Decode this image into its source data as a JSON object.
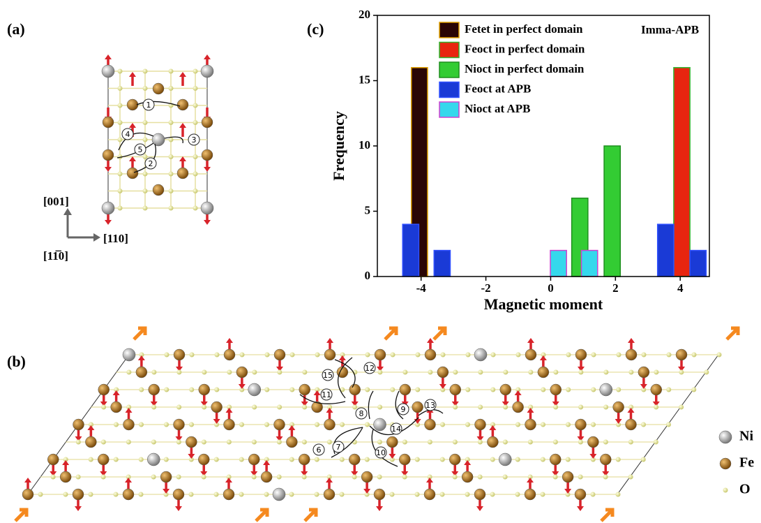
{
  "panel_a": {
    "label": "(a)",
    "paths": [
      "1",
      "2",
      "3",
      "4",
      "5"
    ],
    "axes": [
      "[001]",
      "[110]",
      "[11̅0]"
    ]
  },
  "panel_b": {
    "label": "(b)",
    "paths": [
      "6",
      "7",
      "8",
      "9",
      "10",
      "11",
      "12",
      "13",
      "14",
      "15"
    ],
    "legend": [
      "Ni",
      "Fe",
      "O"
    ]
  },
  "chart_data": {
    "type": "bar",
    "panel_label": "(c)",
    "annotation": "Imma-APB",
    "xlabel": "Magnetic moment",
    "ylabel": "Frequency",
    "xlim": [
      -5.35,
      4.9
    ],
    "xticks": [
      -4,
      -2,
      0,
      2,
      4
    ],
    "ylim": [
      0,
      20
    ],
    "yticks": [
      0,
      5,
      10,
      15,
      20
    ],
    "legend": "upper center",
    "series": [
      {
        "name": "Fetet in perfect domain",
        "color": "#2a0505",
        "edgecolor": "#e0a000",
        "x": [
          -4.05
        ],
        "values": [
          16
        ]
      },
      {
        "name": "Feoct in perfect domain",
        "color": "#e8250f",
        "edgecolor": "#2fb52f",
        "x": [
          4.05
        ],
        "values": [
          16
        ]
      },
      {
        "name": "Nioct in perfect domain",
        "color": "#33cc33",
        "edgecolor": "#1e8f1e",
        "x": [
          0.9,
          1.9
        ],
        "values": [
          6,
          10
        ]
      },
      {
        "name": "Feoct at APB",
        "color": "#1a3ad6",
        "edgecolor": "#3050ff",
        "x": [
          -4.32,
          -3.35,
          3.55,
          4.55
        ],
        "values": [
          4,
          2,
          4,
          2
        ]
      },
      {
        "name": "Nioct at APB",
        "color": "#35d8ec",
        "edgecolor": "#d040d0",
        "x": [
          0.24,
          1.2
        ],
        "values": [
          2,
          2
        ]
      }
    ]
  }
}
